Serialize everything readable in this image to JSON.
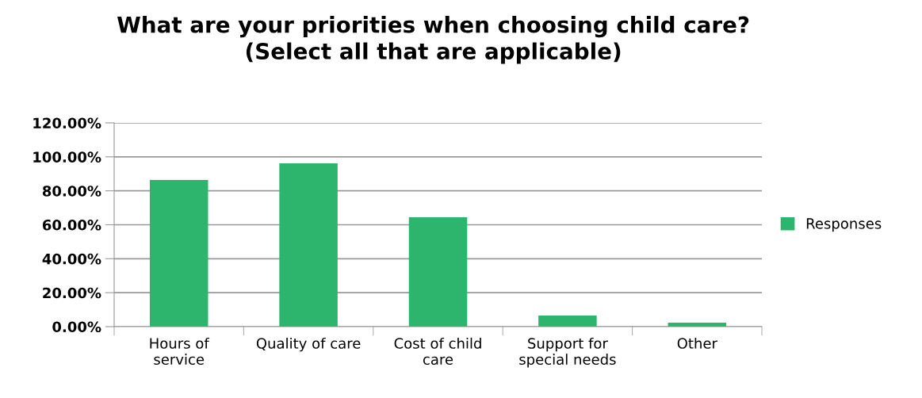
{
  "chart_data": {
    "type": "bar",
    "title": "What are your priorities when choosing child care?\n(Select all that are applicable)",
    "categories": [
      "Hours of\nservice",
      "Quality of care",
      "Cost of child\ncare",
      "Support for\nspecial needs",
      "Other"
    ],
    "series": [
      {
        "name": "Responses",
        "color": "#2db56d",
        "values": [
          86.4,
          96.2,
          64.4,
          6.5,
          2.3
        ]
      }
    ],
    "ylim": [
      0,
      120
    ],
    "yticks": [
      {
        "value": 0,
        "label": "0.00%"
      },
      {
        "value": 20,
        "label": "20.00%"
      },
      {
        "value": 40,
        "label": "40.00%"
      },
      {
        "value": 60,
        "label": "60.00%"
      },
      {
        "value": 80,
        "label": "80.00%"
      },
      {
        "value": 100,
        "label": "100.00%"
      },
      {
        "value": 120,
        "label": "120.00%"
      }
    ],
    "grid": "y",
    "legend": "right"
  }
}
